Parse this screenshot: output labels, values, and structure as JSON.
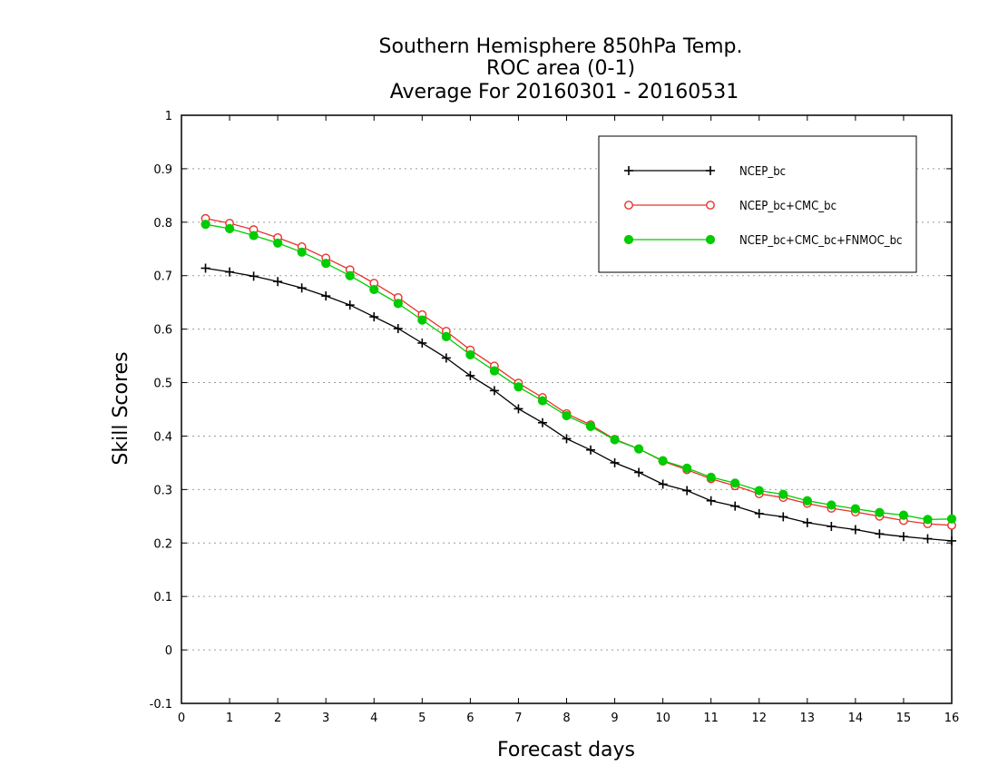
{
  "chart_data": {
    "type": "line",
    "title": [
      "Southern Hemisphere 850hPa Temp.",
      "ROC area (0-1)",
      "Average For 20160301 - 20160531"
    ],
    "xlabel": "Forecast days",
    "ylabel": "Skill Scores",
    "xlim": [
      0,
      16
    ],
    "ylim": [
      -0.1,
      1
    ],
    "xticks": [
      "0",
      "1",
      "2",
      "3",
      "4",
      "5",
      "6",
      "7",
      "8",
      "9",
      "10",
      "11",
      "12",
      "13",
      "14",
      "15",
      "16"
    ],
    "yticks": [
      "-0.1",
      "0",
      "0.1",
      "0.2",
      "0.3",
      "0.4",
      "0.5",
      "0.6",
      "0.7",
      "0.8",
      "0.9",
      "1"
    ],
    "grid": "horizontal dotted",
    "legend_position": "top-right",
    "x": [
      0.5,
      1,
      1.5,
      2,
      2.5,
      3,
      3.5,
      4,
      4.5,
      5,
      5.5,
      6,
      6.5,
      7,
      7.5,
      8,
      8.5,
      9,
      9.5,
      10,
      10.5,
      11,
      11.5,
      12,
      12.5,
      13,
      13.5,
      14,
      14.5,
      15,
      15.5,
      16
    ],
    "series": [
      {
        "name": "NCEP_bc",
        "color": "#000000",
        "marker": "plus",
        "values": [
          0.714,
          0.707,
          0.699,
          0.689,
          0.677,
          0.662,
          0.645,
          0.623,
          0.601,
          0.574,
          0.546,
          0.513,
          0.485,
          0.451,
          0.425,
          0.395,
          0.374,
          0.35,
          0.332,
          0.31,
          0.298,
          0.279,
          0.269,
          0.255,
          0.249,
          0.238,
          0.231,
          0.225,
          0.217,
          0.212,
          0.208,
          0.204
        ]
      },
      {
        "name": "NCEP_bc+CMC_bc",
        "color": "#e8322b",
        "marker": "open-circle",
        "values": [
          0.807,
          0.798,
          0.786,
          0.771,
          0.754,
          0.733,
          0.711,
          0.686,
          0.659,
          0.627,
          0.596,
          0.561,
          0.531,
          0.499,
          0.472,
          0.442,
          0.421,
          0.394,
          0.376,
          0.353,
          0.337,
          0.32,
          0.307,
          0.292,
          0.285,
          0.274,
          0.265,
          0.258,
          0.25,
          0.242,
          0.236,
          0.233
        ]
      },
      {
        "name": "NCEP_bc+CMC_bc+FNMOC_bc",
        "color": "#00cc00",
        "marker": "filled-circle",
        "values": [
          0.796,
          0.788,
          0.775,
          0.761,
          0.744,
          0.723,
          0.7,
          0.674,
          0.648,
          0.617,
          0.586,
          0.552,
          0.522,
          0.492,
          0.466,
          0.438,
          0.418,
          0.393,
          0.376,
          0.354,
          0.34,
          0.323,
          0.312,
          0.298,
          0.291,
          0.279,
          0.271,
          0.264,
          0.257,
          0.252,
          0.244,
          0.245
        ]
      }
    ]
  }
}
